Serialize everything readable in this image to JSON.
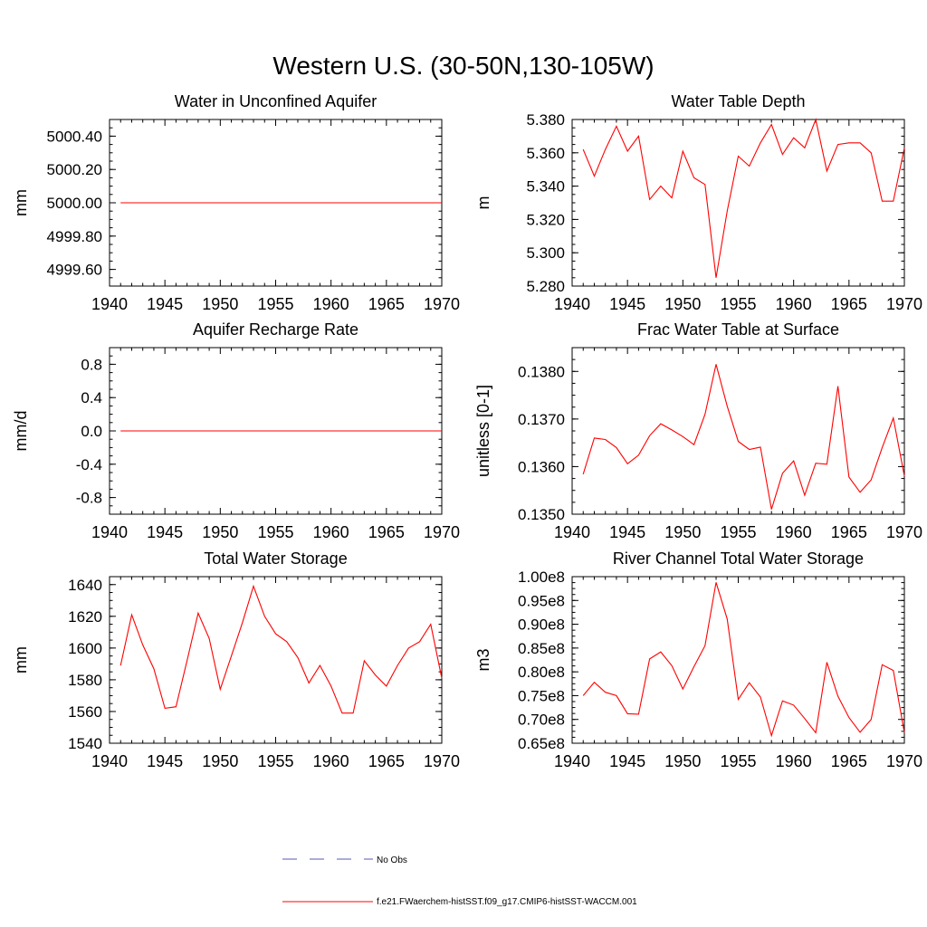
{
  "figure": {
    "title": "Western U.S. (30-50N,130-105W)",
    "line_color": "#ff0000",
    "obs_color": "#5a5ab4"
  },
  "legend": {
    "entries": [
      {
        "label": "No Obs",
        "style": "dashed",
        "color": "#5a5ab4"
      },
      {
        "label": "f.e21.FWaerchem-histSST.f09_g17.CMIP6-histSST-WACCM.001",
        "style": "solid",
        "color": "#ff0000"
      }
    ]
  },
  "chart_data": [
    {
      "type": "line",
      "title": "Water in Unconfined Aquifer",
      "xlabel": "",
      "ylabel": "mm",
      "xlim": [
        1940,
        1970
      ],
      "ylim": [
        4999.5,
        5000.5
      ],
      "x_ticks": [
        "1940",
        "1945",
        "1950",
        "1955",
        "1960",
        "1965",
        "1970"
      ],
      "y_ticks": [
        {
          "value": 4999.6,
          "label": "4999.60"
        },
        {
          "value": 4999.8,
          "label": "4999.80"
        },
        {
          "value": 5000.0,
          "label": "5000.00"
        },
        {
          "value": 5000.2,
          "label": "5000.20"
        },
        {
          "value": 5000.4,
          "label": "5000.40"
        }
      ],
      "series": [
        {
          "x": [
            1941,
            1942,
            1943,
            1944,
            1945,
            1946,
            1947,
            1948,
            1949,
            1950,
            1951,
            1952,
            1953,
            1954,
            1955,
            1956,
            1957,
            1958,
            1959,
            1960,
            1961,
            1962,
            1963,
            1964,
            1965,
            1966,
            1967,
            1968,
            1969,
            1970
          ],
          "values": [
            5000.0,
            5000.0,
            5000.0,
            5000.0,
            5000.0,
            5000.0,
            5000.0,
            5000.0,
            5000.0,
            5000.0,
            5000.0,
            5000.0,
            5000.0,
            5000.0,
            5000.0,
            5000.0,
            5000.0,
            5000.0,
            5000.0,
            5000.0,
            5000.0,
            5000.0,
            5000.0,
            5000.0,
            5000.0,
            5000.0,
            5000.0,
            5000.0,
            5000.0,
            5000.0
          ]
        }
      ]
    },
    {
      "type": "line",
      "title": "Water Table Depth",
      "xlabel": "",
      "ylabel": "m",
      "xlim": [
        1940,
        1970
      ],
      "ylim": [
        5.28,
        5.38
      ],
      "x_ticks": [
        "1940",
        "1945",
        "1950",
        "1955",
        "1960",
        "1965",
        "1970"
      ],
      "y_ticks": [
        {
          "value": 5.28,
          "label": "5.280"
        },
        {
          "value": 5.3,
          "label": "5.300"
        },
        {
          "value": 5.32,
          "label": "5.320"
        },
        {
          "value": 5.34,
          "label": "5.340"
        },
        {
          "value": 5.36,
          "label": "5.360"
        },
        {
          "value": 5.38,
          "label": "5.380"
        }
      ],
      "series": [
        {
          "x": [
            1941,
            1942,
            1943,
            1944,
            1945,
            1946,
            1947,
            1948,
            1949,
            1950,
            1951,
            1952,
            1953,
            1954,
            1955,
            1956,
            1957,
            1958,
            1959,
            1960,
            1961,
            1962,
            1963,
            1964,
            1965,
            1966,
            1967,
            1968,
            1969,
            1970
          ],
          "values": [
            5.362,
            5.346,
            5.362,
            5.376,
            5.361,
            5.37,
            5.332,
            5.34,
            5.333,
            5.361,
            5.345,
            5.341,
            5.285,
            5.325,
            5.358,
            5.352,
            5.366,
            5.377,
            5.359,
            5.369,
            5.363,
            5.38,
            5.349,
            5.365,
            5.366,
            5.366,
            5.36,
            5.331,
            5.331,
            5.363
          ]
        }
      ]
    },
    {
      "type": "line",
      "title": "Aquifer Recharge Rate",
      "xlabel": "",
      "ylabel": "mm/d",
      "xlim": [
        1940,
        1970
      ],
      "ylim": [
        -1.0,
        1.0
      ],
      "x_ticks": [
        "1940",
        "1945",
        "1950",
        "1955",
        "1960",
        "1965",
        "1970"
      ],
      "y_ticks": [
        {
          "value": -0.8,
          "label": "-0.8"
        },
        {
          "value": -0.4,
          "label": "-0.4"
        },
        {
          "value": 0.0,
          "label": "0.0"
        },
        {
          "value": 0.4,
          "label": "0.4"
        },
        {
          "value": 0.8,
          "label": "0.8"
        }
      ],
      "series": [
        {
          "x": [
            1941,
            1942,
            1943,
            1944,
            1945,
            1946,
            1947,
            1948,
            1949,
            1950,
            1951,
            1952,
            1953,
            1954,
            1955,
            1956,
            1957,
            1958,
            1959,
            1960,
            1961,
            1962,
            1963,
            1964,
            1965,
            1966,
            1967,
            1968,
            1969,
            1970
          ],
          "values": [
            0.0,
            0.0,
            0.0,
            0.0,
            0.0,
            0.0,
            0.0,
            0.0,
            0.0,
            0.0,
            0.0,
            0.0,
            0.0,
            0.0,
            0.0,
            0.0,
            0.0,
            0.0,
            0.0,
            0.0,
            0.0,
            0.0,
            0.0,
            0.0,
            0.0,
            0.0,
            0.0,
            0.0,
            0.0,
            0.0
          ]
        }
      ]
    },
    {
      "type": "line",
      "title": "Frac Water Table at Surface",
      "xlabel": "",
      "ylabel": "unitless [0-1]",
      "xlim": [
        1940,
        1970
      ],
      "ylim": [
        0.135,
        0.1385
      ],
      "x_ticks": [
        "1940",
        "1945",
        "1950",
        "1955",
        "1960",
        "1965",
        "1970"
      ],
      "y_ticks": [
        {
          "value": 0.135,
          "label": "0.1350"
        },
        {
          "value": 0.136,
          "label": "0.1360"
        },
        {
          "value": 0.137,
          "label": "0.1370"
        },
        {
          "value": 0.138,
          "label": "0.1380"
        }
      ],
      "series": [
        {
          "x": [
            1941,
            1942,
            1943,
            1944,
            1945,
            1946,
            1947,
            1948,
            1949,
            1950,
            1951,
            1952,
            1953,
            1954,
            1955,
            1956,
            1957,
            1958,
            1959,
            1960,
            1961,
            1962,
            1963,
            1964,
            1965,
            1966,
            1967,
            1968,
            1969,
            1970
          ],
          "values": [
            0.13584,
            0.1366,
            0.13657,
            0.1364,
            0.13606,
            0.13624,
            0.13665,
            0.1369,
            0.13677,
            0.13663,
            0.13646,
            0.1371,
            0.13815,
            0.13727,
            0.13653,
            0.13636,
            0.13641,
            0.1351,
            0.13586,
            0.13612,
            0.1354,
            0.13607,
            0.13605,
            0.13769,
            0.13578,
            0.13546,
            0.13572,
            0.1364,
            0.13702,
            0.1358
          ]
        }
      ]
    },
    {
      "type": "line",
      "title": "Total Water Storage",
      "xlabel": "",
      "ylabel": "mm",
      "xlim": [
        1940,
        1970
      ],
      "ylim": [
        1540,
        1645
      ],
      "x_ticks": [
        "1940",
        "1945",
        "1950",
        "1955",
        "1960",
        "1965",
        "1970"
      ],
      "y_ticks": [
        {
          "value": 1540,
          "label": "1540"
        },
        {
          "value": 1560,
          "label": "1560"
        },
        {
          "value": 1580,
          "label": "1580"
        },
        {
          "value": 1600,
          "label": "1600"
        },
        {
          "value": 1620,
          "label": "1620"
        },
        {
          "value": 1640,
          "label": "1640"
        }
      ],
      "series": [
        {
          "x": [
            1941,
            1942,
            1943,
            1944,
            1945,
            1946,
            1947,
            1948,
            1949,
            1950,
            1951,
            1952,
            1953,
            1954,
            1955,
            1956,
            1957,
            1958,
            1959,
            1960,
            1961,
            1962,
            1963,
            1964,
            1965,
            1966,
            1967,
            1968,
            1969,
            1970
          ],
          "values": [
            1589,
            1621,
            1602,
            1587,
            1562,
            1563,
            1592,
            1622,
            1606,
            1574,
            1595,
            1616,
            1639,
            1620,
            1609,
            1604,
            1594,
            1578,
            1589,
            1576,
            1559,
            1559,
            1592,
            1583,
            1576,
            1589,
            1600,
            1604,
            1615,
            1581
          ]
        }
      ]
    },
    {
      "type": "line",
      "title": "River Channel Total Water Storage",
      "xlabel": "",
      "ylabel": "m3",
      "xlim": [
        1940,
        1970
      ],
      "ylim": [
        0.65,
        1.0
      ],
      "y_units_note": "1e8",
      "x_ticks": [
        "1940",
        "1945",
        "1950",
        "1955",
        "1960",
        "1965",
        "1970"
      ],
      "y_ticks": [
        {
          "value": 0.65,
          "label": "0.65e8"
        },
        {
          "value": 0.7,
          "label": "0.70e8"
        },
        {
          "value": 0.75,
          "label": "0.75e8"
        },
        {
          "value": 0.8,
          "label": "0.80e8"
        },
        {
          "value": 0.85,
          "label": "0.85e8"
        },
        {
          "value": 0.9,
          "label": "0.90e8"
        },
        {
          "value": 0.95,
          "label": "0.95e8"
        },
        {
          "value": 1.0,
          "label": "1.00e8"
        }
      ],
      "series": [
        {
          "x": [
            1941,
            1942,
            1943,
            1944,
            1945,
            1946,
            1947,
            1948,
            1949,
            1950,
            1951,
            1952,
            1953,
            1954,
            1955,
            1956,
            1957,
            1958,
            1959,
            1960,
            1961,
            1962,
            1963,
            1964,
            1965,
            1966,
            1967,
            1968,
            1969,
            1970
          ],
          "values": [
            0.75,
            0.778,
            0.757,
            0.75,
            0.712,
            0.711,
            0.827,
            0.842,
            0.813,
            0.764,
            0.811,
            0.855,
            0.988,
            0.911,
            0.742,
            0.777,
            0.747,
            0.666,
            0.739,
            0.73,
            0.702,
            0.672,
            0.82,
            0.749,
            0.704,
            0.673,
            0.7,
            0.815,
            0.803,
            0.672
          ]
        }
      ]
    }
  ]
}
